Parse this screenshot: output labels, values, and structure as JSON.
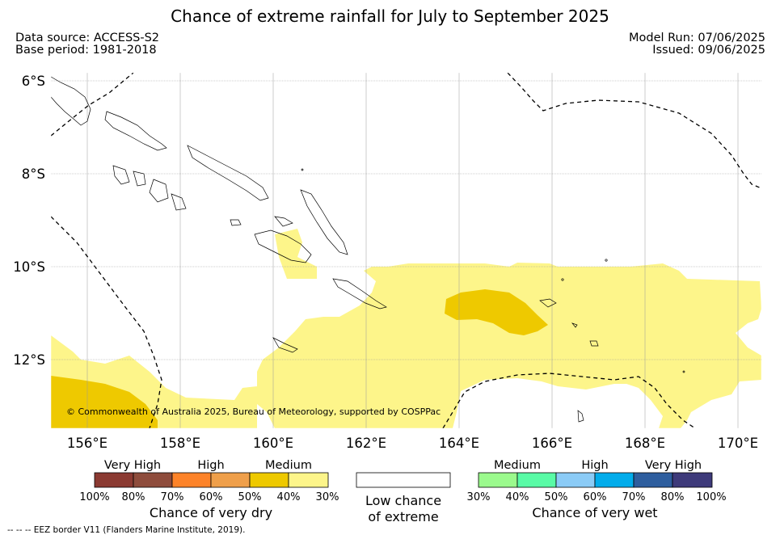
{
  "title": "Chance of extreme rainfall for July to September 2025",
  "meta": {
    "data_source": "Data source: ACCESS-S2",
    "base_period": "Base period: 1981-2018",
    "model_run": "Model Run: 07/06/2025",
    "issued": "Issued: 09/06/2025"
  },
  "map": {
    "extent": {
      "lon_min": 155.0,
      "lon_max": 170.5,
      "lat_min": -13.5,
      "lat_max": -5.8
    },
    "lat_labels": [
      "6°S",
      "8°S",
      "10°S",
      "12°S"
    ],
    "lon_labels": [
      "156°E",
      "158°E",
      "160°E",
      "162°E",
      "164°E",
      "166°E",
      "168°E",
      "170°E"
    ],
    "copyright": "© Commonwealth of Australia 2025, Bureau of Meteorology, supported by COSPPac",
    "colors": {
      "dry_30_40": "#fdf58a",
      "dry_40_50": "#eec900",
      "border": "#000000",
      "grid": "#999999"
    }
  },
  "legend": {
    "dry": {
      "labels": [
        "Very High",
        "High",
        "Medium"
      ],
      "colors": [
        "#8b3a32",
        "#8e4c3c",
        "#fd8329",
        "#ef9f4a",
        "#eec900",
        "#fdf58a"
      ],
      "ticks": [
        "100%",
        "80%",
        "70%",
        "60%",
        "50%",
        "40%",
        "30%"
      ],
      "title": "Chance of very dry"
    },
    "low": {
      "line1": "Low chance",
      "line2": "of extreme",
      "color": "#ffffff"
    },
    "wet": {
      "labels": [
        "Medium",
        "High",
        "Very High"
      ],
      "colors": [
        "#9bfa8d",
        "#59fba6",
        "#8bcbf6",
        "#02aceb",
        "#2e5e9e",
        "#3e3a7a"
      ],
      "ticks": [
        "30%",
        "40%",
        "50%",
        "60%",
        "70%",
        "80%",
        "100%"
      ],
      "title": "Chance of very wet"
    }
  },
  "footnote": "-- -- -- EEZ border V11 (Flanders Marine Institute, 2019)."
}
